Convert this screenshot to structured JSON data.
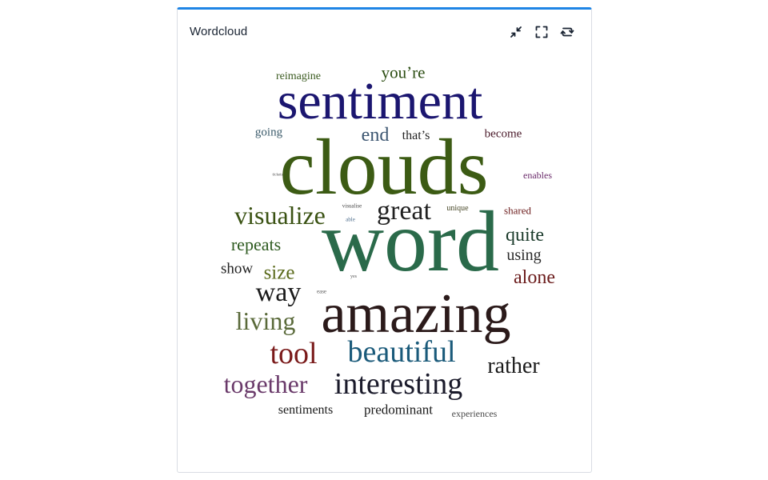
{
  "panel": {
    "title": "Wordcloud"
  },
  "toolbar": [
    {
      "name": "collapse-icon",
      "label": "minimize"
    },
    {
      "name": "expand-icon",
      "label": "fullscreen"
    },
    {
      "name": "refresh-icon",
      "label": "refresh"
    }
  ],
  "words": [
    {
      "text": "reimagine",
      "color": "#3a5a1f"
    },
    {
      "text": "you’re",
      "color": "#2b4d12"
    },
    {
      "text": "sentiment",
      "color": "#1b1670"
    },
    {
      "text": "going",
      "color": "#3a5a6a"
    },
    {
      "text": "end",
      "color": "#3b5570"
    },
    {
      "text": "that’s",
      "color": "#222222"
    },
    {
      "text": "become",
      "color": "#4a1a2a"
    },
    {
      "text": "clouds",
      "color": "#3c5b14"
    },
    {
      "text": "tickets",
      "color": "#555555"
    },
    {
      "text": "enables",
      "color": "#6a2a6a"
    },
    {
      "text": "visualize",
      "color": "#3a5213"
    },
    {
      "text": "great",
      "color": "#202020"
    },
    {
      "text": "visualise",
      "color": "#444444"
    },
    {
      "text": "able",
      "color": "#4a6a8a"
    },
    {
      "text": "unique",
      "color": "#4a4a2a"
    },
    {
      "text": "shared",
      "color": "#6a1a1a"
    },
    {
      "text": "repeats",
      "color": "#2d5a1f"
    },
    {
      "text": "word",
      "color": "#2a6a4a"
    },
    {
      "text": "quite",
      "color": "#1a3a2a"
    },
    {
      "text": "show",
      "color": "#222222"
    },
    {
      "text": "size",
      "color": "#5a6a1a"
    },
    {
      "text": "yes",
      "color": "#555555"
    },
    {
      "text": "using",
      "color": "#2a2a2a"
    },
    {
      "text": "alone",
      "color": "#6a1a1a"
    },
    {
      "text": "way",
      "color": "#1a1a1a"
    },
    {
      "text": "ease",
      "color": "#555555"
    },
    {
      "text": "amazing",
      "color": "#2b1a1a"
    },
    {
      "text": "living",
      "color": "#5a6a3a"
    },
    {
      "text": "tool",
      "color": "#7a1a1a"
    },
    {
      "text": "beautiful",
      "color": "#1a5a7a"
    },
    {
      "text": "rather",
      "color": "#1a1a1a"
    },
    {
      "text": "together",
      "color": "#6a3a6a"
    },
    {
      "text": "interesting",
      "color": "#1a1a2a"
    },
    {
      "text": "sentiments",
      "color": "#1a1a1a"
    },
    {
      "text": "predominant",
      "color": "#1a1a1a"
    },
    {
      "text": "experiences",
      "color": "#4a4a4a"
    }
  ]
}
